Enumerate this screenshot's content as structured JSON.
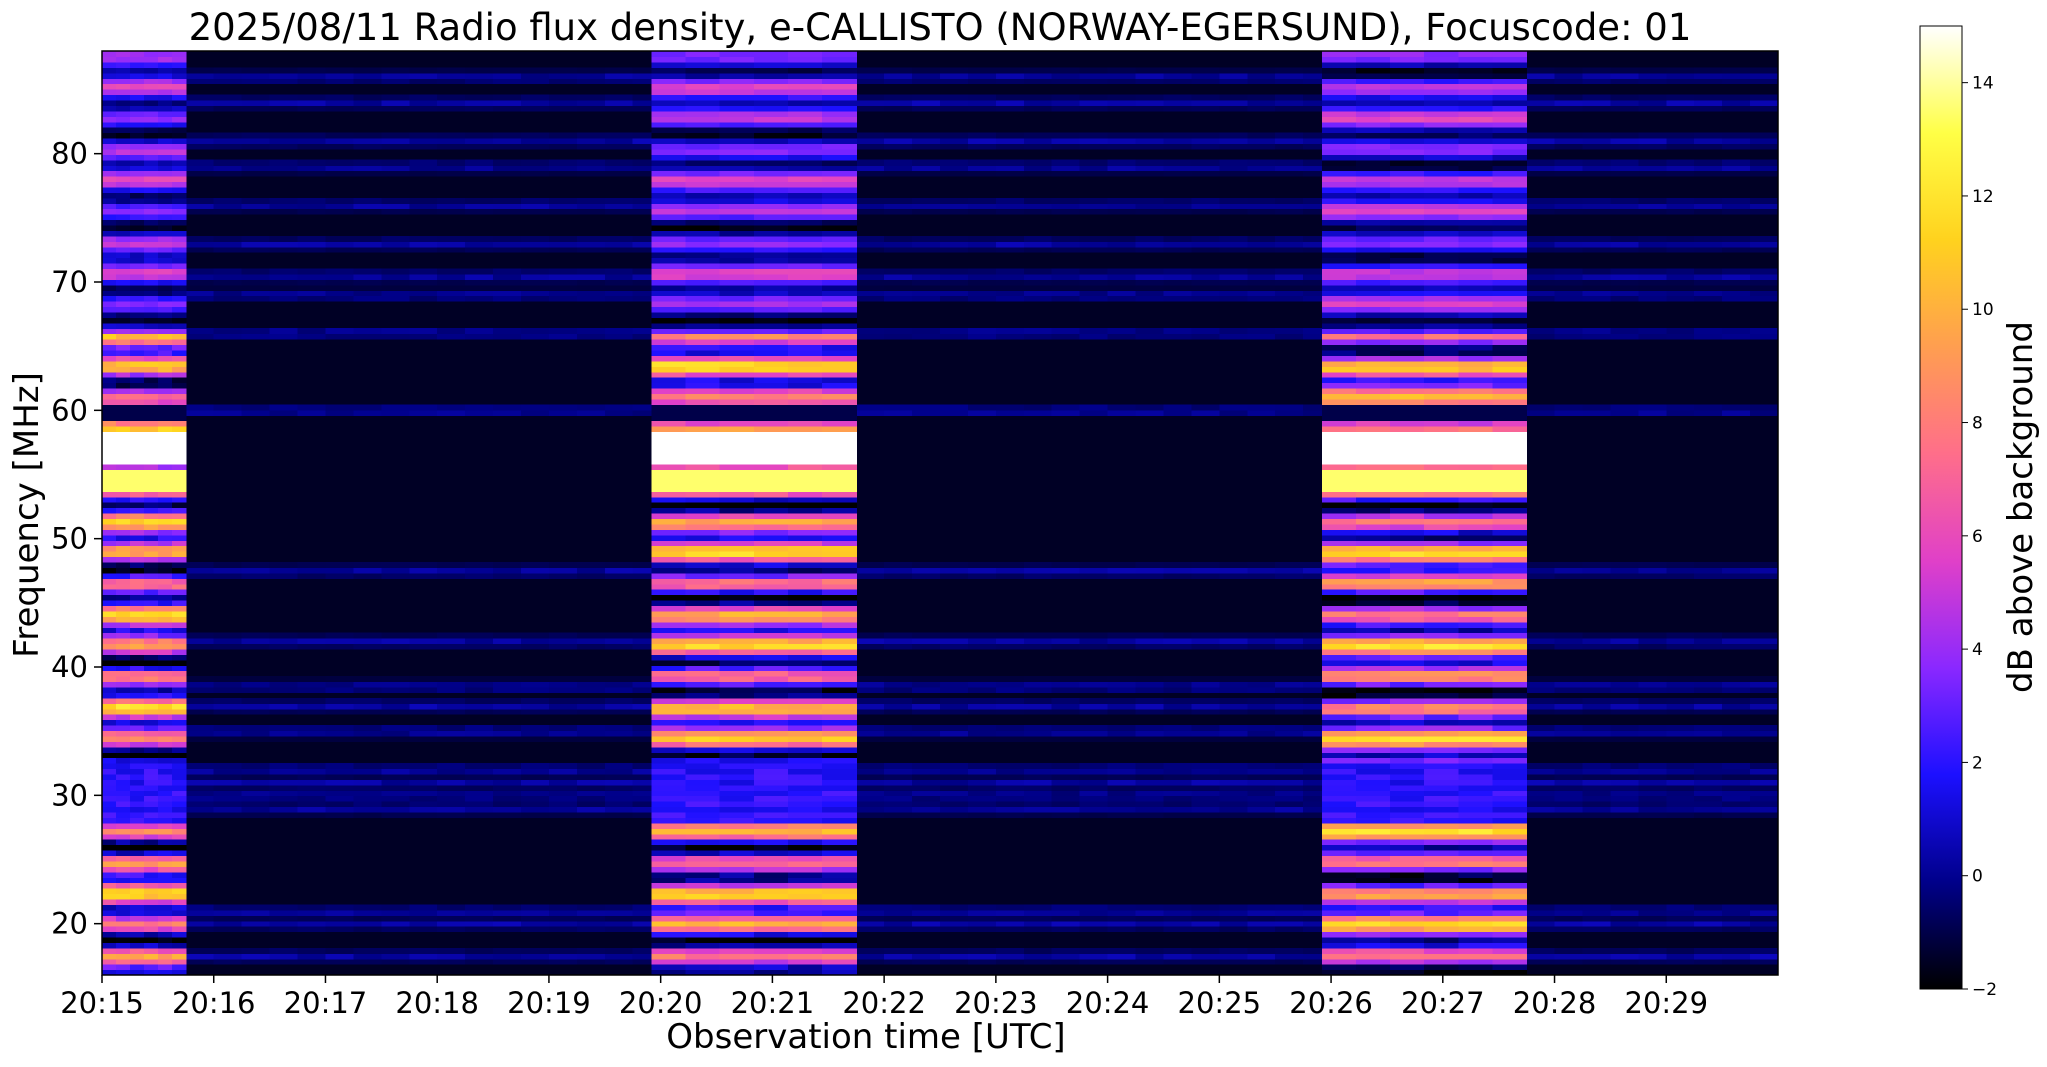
{
  "chart_data": {
    "type": "heatmap",
    "title": "2025/08/11  Radio flux density, e-CALLISTO (NORWAY-EGERSUND), Focuscode: 01",
    "xlabel": "Observation time [UTC]",
    "ylabel": "Frequency [MHz]",
    "colorbar_label": "dB above background",
    "colormap": "gnuplot2",
    "colormap_stops": [
      "#000000",
      "#00008a",
      "#1c10ff",
      "#8a28ff",
      "#e040c8",
      "#ff6e8a",
      "#ff9e50",
      "#ffd21e",
      "#ffff46",
      "#ffffff"
    ],
    "x_ticks": [
      "20:15",
      "20:16",
      "20:17",
      "20:18",
      "20:19",
      "20:20",
      "20:21",
      "20:22",
      "20:23",
      "20:24",
      "20:25",
      "20:26",
      "20:27",
      "20:28",
      "20:29"
    ],
    "xlim": [
      "20:15:00",
      "20:30:00"
    ],
    "y_ticks": [
      20,
      30,
      40,
      50,
      60,
      70,
      80
    ],
    "ylim": [
      16,
      88
    ],
    "colorbar_ticks": [
      -2,
      0,
      2,
      4,
      6,
      8,
      10,
      12,
      14
    ],
    "clim": [
      -2,
      15
    ],
    "calibration_intervals": [
      {
        "start": "20:15:00",
        "end": "20:15:45",
        "level": "high"
      },
      {
        "start": "20:19:55",
        "end": "20:21:45",
        "level": "high"
      },
      {
        "start": "20:25:55",
        "end": "20:27:45",
        "level": "high"
      }
    ],
    "quiet_level_db": -1.5,
    "persistent_lines_mhz": [
      17.5,
      20,
      21,
      29,
      30,
      31,
      32,
      35,
      37,
      38.5,
      42,
      47.5,
      60,
      66,
      69,
      70.5,
      73,
      76,
      79,
      81,
      84,
      86
    ]
  }
}
